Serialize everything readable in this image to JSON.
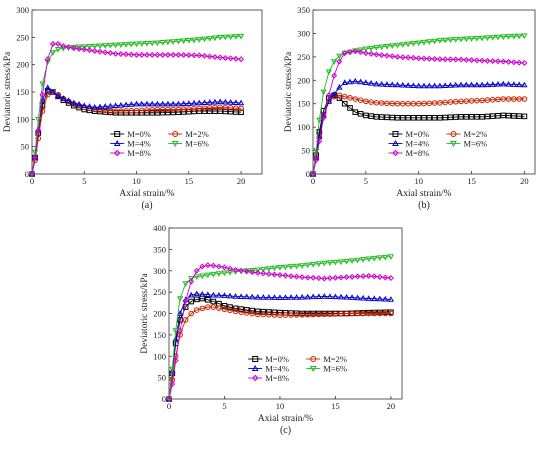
{
  "chart_data": [
    {
      "panel": "(a)",
      "type": "line",
      "xlabel": "Axial strain/%",
      "ylabel": "Deviatoric stress/kPa",
      "xlim": [
        0,
        22
      ],
      "ylim": [
        0,
        300
      ],
      "xticks": [
        0,
        5,
        10,
        15,
        20
      ],
      "yticks": [
        0,
        50,
        100,
        150,
        200,
        250,
        300
      ],
      "legend_position": "bottom-center",
      "series": [
        {
          "name": "M=0%",
          "color": "#000000",
          "marker": "square",
          "x": [
            0,
            0.3,
            0.6,
            1,
            1.5,
            2,
            2.5,
            3,
            4,
            5,
            6,
            8,
            10,
            12,
            14,
            16,
            18,
            20
          ],
          "y": [
            0,
            30,
            75,
            125,
            152,
            150,
            142,
            135,
            125,
            118,
            115,
            112,
            112,
            112,
            113,
            115,
            115,
            113
          ]
        },
        {
          "name": "M=2%",
          "color": "#cc2200",
          "marker": "circle",
          "x": [
            0,
            0.3,
            0.6,
            1,
            1.5,
            2,
            2.5,
            3,
            4,
            5,
            6,
            8,
            10,
            12,
            14,
            16,
            18,
            20
          ],
          "y": [
            0,
            25,
            65,
            115,
            145,
            150,
            145,
            138,
            128,
            122,
            118,
            115,
            116,
            118,
            118,
            120,
            122,
            120
          ]
        },
        {
          "name": "M=4%",
          "color": "#0000cc",
          "marker": "triangle",
          "x": [
            0,
            0.3,
            0.6,
            1,
            1.5,
            2,
            2.5,
            3,
            4,
            5,
            6,
            8,
            10,
            12,
            14,
            16,
            18,
            20
          ],
          "y": [
            0,
            30,
            80,
            135,
            158,
            150,
            143,
            138,
            130,
            125,
            122,
            125,
            128,
            128,
            128,
            130,
            132,
            130
          ]
        },
        {
          "name": "M=6%",
          "color": "#22bb22",
          "marker": "triangle-down",
          "x": [
            0,
            0.3,
            0.6,
            1,
            1.5,
            2,
            2.5,
            3,
            4,
            5,
            6,
            8,
            10,
            12,
            14,
            16,
            18,
            20
          ],
          "y": [
            0,
            40,
            100,
            165,
            205,
            222,
            228,
            230,
            232,
            233,
            234,
            236,
            238,
            240,
            243,
            246,
            250,
            252
          ]
        },
        {
          "name": "M=8%",
          "color": "#cc00cc",
          "marker": "diamond",
          "x": [
            0,
            0.3,
            0.6,
            1,
            1.5,
            2,
            2.5,
            3,
            4,
            5,
            6,
            8,
            10,
            12,
            14,
            16,
            18,
            20
          ],
          "y": [
            0,
            30,
            80,
            145,
            210,
            238,
            238,
            234,
            230,
            228,
            225,
            220,
            218,
            218,
            218,
            217,
            213,
            210
          ]
        }
      ]
    },
    {
      "panel": "(b)",
      "type": "line",
      "xlabel": "Axial strain/%",
      "ylabel": "Deviatoric stress/kPa",
      "xlim": [
        0,
        21
      ],
      "ylim": [
        0,
        350
      ],
      "xticks": [
        0,
        5,
        10,
        15,
        20
      ],
      "yticks": [
        0,
        50,
        100,
        150,
        200,
        250,
        300,
        350
      ],
      "legend_position": "bottom-center",
      "series": [
        {
          "name": "M=0%",
          "color": "#000000",
          "marker": "square",
          "x": [
            0,
            0.3,
            0.6,
            1,
            1.5,
            2,
            2.5,
            3,
            4,
            5,
            6,
            8,
            10,
            12,
            14,
            16,
            18,
            20
          ],
          "y": [
            0,
            40,
            90,
            135,
            162,
            168,
            162,
            150,
            132,
            125,
            122,
            120,
            120,
            120,
            122,
            122,
            125,
            123
          ]
        },
        {
          "name": "M=2%",
          "color": "#cc2200",
          "marker": "circle",
          "x": [
            0,
            0.3,
            0.6,
            1,
            1.5,
            2,
            2.5,
            3,
            4,
            5,
            6,
            8,
            10,
            12,
            14,
            16,
            18,
            20
          ],
          "y": [
            0,
            35,
            80,
            125,
            155,
            165,
            168,
            165,
            160,
            155,
            152,
            150,
            150,
            152,
            155,
            157,
            160,
            160
          ]
        },
        {
          "name": "M=4%",
          "color": "#0000cc",
          "marker": "triangle",
          "x": [
            0,
            0.3,
            0.6,
            1,
            1.5,
            2,
            2.5,
            3,
            4,
            5,
            6,
            8,
            10,
            12,
            14,
            16,
            18,
            20
          ],
          "y": [
            0,
            35,
            80,
            125,
            155,
            170,
            185,
            195,
            198,
            195,
            192,
            190,
            188,
            188,
            190,
            190,
            192,
            190
          ]
        },
        {
          "name": "M=6%",
          "color": "#22bb22",
          "marker": "triangle-down",
          "x": [
            0,
            0.3,
            0.6,
            1,
            1.5,
            2,
            2.5,
            3,
            4,
            5,
            6,
            8,
            10,
            12,
            14,
            16,
            18,
            20
          ],
          "y": [
            0,
            50,
            115,
            175,
            218,
            240,
            252,
            258,
            263,
            267,
            270,
            275,
            280,
            285,
            288,
            290,
            293,
            295
          ]
        },
        {
          "name": "M=8%",
          "color": "#cc00cc",
          "marker": "diamond",
          "x": [
            0,
            0.3,
            0.6,
            1,
            1.5,
            2,
            2.5,
            3,
            4,
            5,
            6,
            8,
            10,
            12,
            14,
            16,
            18,
            20
          ],
          "y": [
            0,
            30,
            70,
            120,
            168,
            210,
            240,
            258,
            262,
            258,
            255,
            250,
            247,
            245,
            244,
            242,
            240,
            237
          ]
        }
      ]
    },
    {
      "panel": "(c)",
      "type": "line",
      "xlabel": "Axial strain/%",
      "ylabel": "Deviatoric stress/kPa",
      "xlim": [
        0,
        21
      ],
      "ylim": [
        0,
        400
      ],
      "xticks": [
        0,
        5,
        10,
        15,
        20
      ],
      "yticks": [
        0,
        50,
        100,
        150,
        200,
        250,
        300,
        350,
        400
      ],
      "legend_position": "bottom-center",
      "series": [
        {
          "name": "M=0%",
          "color": "#000000",
          "marker": "square",
          "x": [
            0,
            0.3,
            0.6,
            1,
            1.5,
            2,
            2.5,
            3,
            3.5,
            4,
            5,
            6,
            8,
            10,
            12,
            14,
            16,
            18,
            20
          ],
          "y": [
            0,
            60,
            130,
            185,
            215,
            228,
            233,
            235,
            232,
            228,
            218,
            212,
            205,
            202,
            200,
            200,
            200,
            202,
            203
          ]
        },
        {
          "name": "M=2%",
          "color": "#cc2200",
          "marker": "circle",
          "x": [
            0,
            0.3,
            0.6,
            1,
            1.5,
            2,
            2.5,
            3,
            3.5,
            4,
            5,
            6,
            8,
            10,
            12,
            14,
            16,
            18,
            20
          ],
          "y": [
            0,
            45,
            100,
            150,
            185,
            200,
            208,
            212,
            215,
            215,
            210,
            205,
            198,
            196,
            197,
            198,
            200,
            200,
            200
          ]
        },
        {
          "name": "M=4%",
          "color": "#0000cc",
          "marker": "triangle",
          "x": [
            0,
            0.3,
            0.6,
            1,
            1.5,
            2,
            2.5,
            3,
            3.5,
            4,
            5,
            6,
            8,
            10,
            12,
            14,
            16,
            18,
            20
          ],
          "y": [
            0,
            65,
            140,
            200,
            232,
            243,
            246,
            245,
            244,
            243,
            242,
            240,
            238,
            237,
            238,
            240,
            238,
            235,
            233
          ]
        },
        {
          "name": "M=6%",
          "color": "#22bb22",
          "marker": "triangle-down",
          "x": [
            0,
            0.3,
            0.6,
            1,
            1.5,
            2,
            2.5,
            3,
            3.5,
            4,
            5,
            6,
            8,
            10,
            12,
            14,
            16,
            18,
            20
          ],
          "y": [
            0,
            70,
            160,
            235,
            270,
            282,
            286,
            288,
            290,
            292,
            295,
            298,
            302,
            308,
            312,
            318,
            322,
            328,
            333
          ]
        },
        {
          "name": "M=8%",
          "color": "#cc00cc",
          "marker": "diamond",
          "x": [
            0,
            0.3,
            0.6,
            1,
            1.5,
            2,
            2.5,
            3,
            3.5,
            4,
            5,
            6,
            8,
            10,
            12,
            14,
            16,
            18,
            20
          ],
          "y": [
            0,
            35,
            90,
            160,
            230,
            275,
            300,
            310,
            313,
            312,
            308,
            302,
            295,
            290,
            285,
            282,
            285,
            288,
            283
          ]
        }
      ]
    }
  ]
}
